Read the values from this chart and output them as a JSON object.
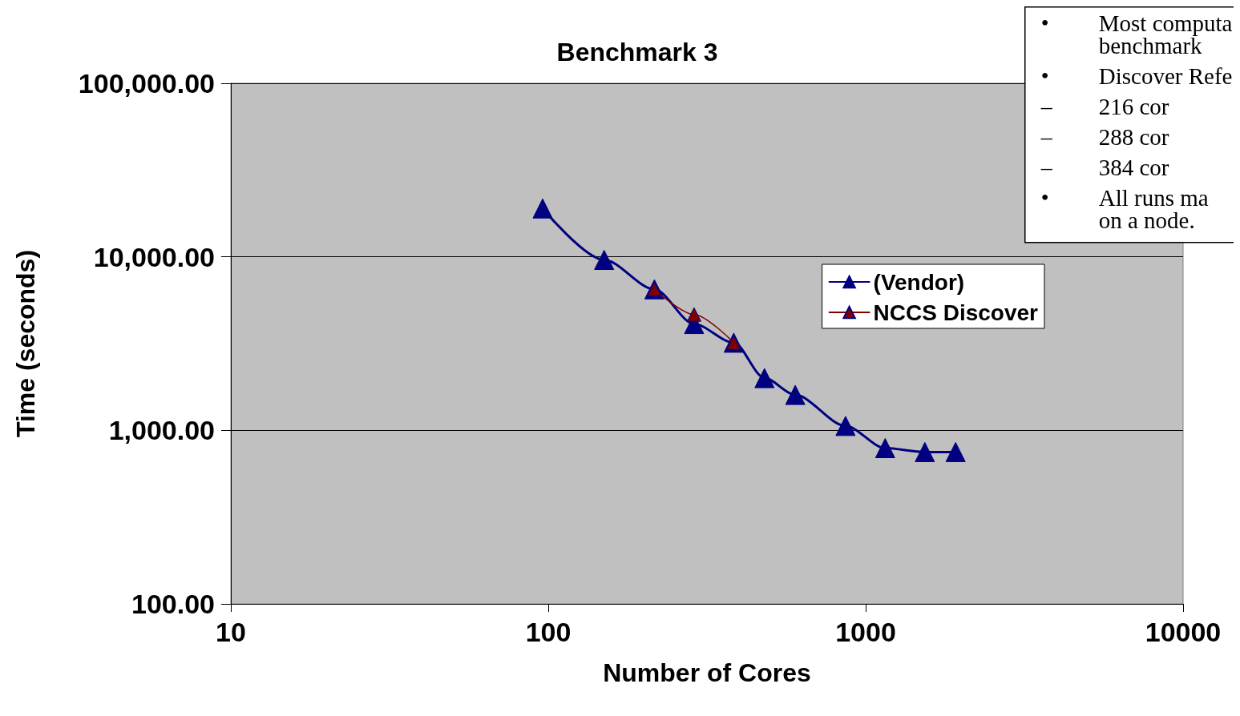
{
  "chart_data": {
    "type": "line",
    "title": "Benchmark 3",
    "xlabel": "Number of Cores",
    "ylabel": "Time (seconds)",
    "log": "xy",
    "marker": "triangle",
    "line_style": "solid",
    "grid": "y",
    "legend": "right",
    "xlim": [
      10,
      10000
    ],
    "xticks": [
      10,
      100,
      1000,
      10000
    ],
    "ylim": [
      100,
      100000
    ],
    "yticks": [
      {
        "value": 100,
        "label": "100.00"
      },
      {
        "value": 1000,
        "label": "1,000.00"
      },
      {
        "value": 10000,
        "label": "10,000.00"
      },
      {
        "value": 100000,
        "label": "100,000.00"
      }
    ],
    "series": [
      {
        "name": "(Vendor)",
        "color": "#000080",
        "x": [
          96,
          150,
          216,
          288,
          384,
          480,
          600,
          864,
          1152,
          1536,
          1920
        ],
        "values": [
          19000,
          9600,
          6500,
          4100,
          3200,
          2000,
          1600,
          1060,
          790,
          750,
          750
        ]
      },
      {
        "name": "NCCS Discover",
        "color": "#800000",
        "x": [
          216,
          288,
          384
        ],
        "values": [
          6500,
          4650,
          3200
        ]
      }
    ],
    "annotations": [
      "• Most computa\nbenchmark",
      "• Discover Refe",
      "– 216 cor",
      "– 288 cor",
      "– 384 cor",
      "• All runs ma\non a node."
    ]
  }
}
